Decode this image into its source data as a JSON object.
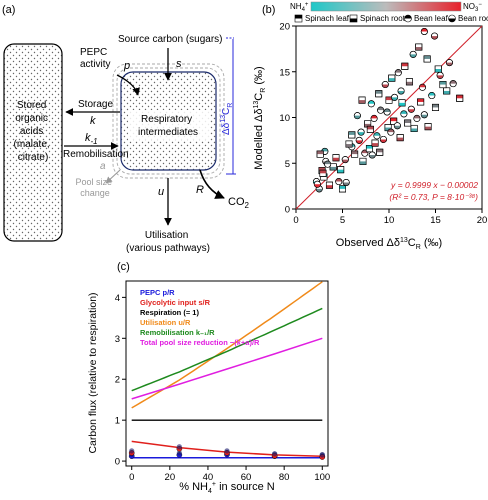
{
  "panel_a": {
    "label": "(a)",
    "stored_box": [
      "Stored",
      "organic",
      "acids",
      "(malate,",
      "citrate)"
    ],
    "resp_box": [
      "Respiratory",
      "intermediates"
    ],
    "source": "Source carbon (sugars)",
    "pepc": [
      "PEPC",
      "activity"
    ],
    "p": "p",
    "s": "s",
    "storage": "Storage",
    "k": "k",
    "k_minus": "k",
    "k_minus_sub": "-1",
    "remobilisation": "Remobilisation",
    "a": "a",
    "pool_change": [
      "Pool size",
      "change"
    ],
    "u": "u",
    "R": "R",
    "co2": "CO",
    "co2_sub": "2",
    "utilisation": [
      "Utilisation",
      "(various pathways)"
    ],
    "delta_label": "Δδ",
    "delta_sup": "13",
    "delta_c": "C",
    "delta_sub": "R"
  },
  "panel_b": {
    "label": "(b)",
    "gradient_left": "NH",
    "gradient_left_sup": "4",
    "gradient_left_plus": "+",
    "gradient_right": "NO",
    "gradient_right_sub": "3",
    "gradient_right_minus": "−",
    "legend": [
      "Spinach leaf",
      "Spinach root",
      "Bean leaf",
      "Bean root"
    ],
    "equation": "y = 0.9999 x − 0.00002",
    "stats": "(R² = 0.73, P = 8·10⁻³⁸)",
    "colors": {
      "low": "#1ec8c8",
      "high": "#e8202a",
      "line": "#d0202a"
    }
  },
  "panel_c": {
    "label": "(c)",
    "legend": [
      {
        "name": "PEPC  p/R",
        "color": "#1a1adb"
      },
      {
        "name": "Glycolytic input  s/R",
        "color": "#e0201c"
      },
      {
        "name": "Respiration  (= 1)",
        "color": "#000000"
      },
      {
        "name": "Utilisation  u/R",
        "color": "#f08a1a"
      },
      {
        "name": "Remobilisation  k₋₁/R",
        "color": "#1e8a1e"
      },
      {
        "name": "Total pool size reduction  −(k+a)/R",
        "color": "#e01ee0"
      }
    ]
  },
  "chart_data": [
    {
      "type": "scatter",
      "title": "",
      "xlabel": "Observed Δδ¹³C_R (‰)",
      "ylabel": "Modelled Δδ¹³C_R (‰)",
      "xlim": [
        0,
        20
      ],
      "ylim": [
        0,
        20
      ],
      "xticks": [
        "0",
        "5",
        "10",
        "15",
        "20"
      ],
      "yticks": [
        "0",
        "5",
        "10",
        "15",
        "20"
      ],
      "fit_line": {
        "slope": 0.9999,
        "intercept": -2e-05
      },
      "points": [
        [
          2.2,
          3.0,
          0
        ],
        [
          2.5,
          2.2,
          0
        ],
        [
          2.8,
          4.2,
          1
        ],
        [
          3.0,
          3.5,
          1
        ],
        [
          3.2,
          5.2,
          0
        ],
        [
          3.6,
          2.6,
          1
        ],
        [
          3.1,
          6.3,
          0
        ],
        [
          2.6,
          6.0,
          1
        ],
        [
          2.3,
          2.7,
          0
        ],
        [
          4.0,
          4.6,
          1
        ],
        [
          4.6,
          3.0,
          0
        ],
        [
          5.0,
          2.2,
          1
        ],
        [
          5.4,
          2.9,
          0
        ],
        [
          4.3,
          5.6,
          1
        ],
        [
          6.0,
          6.8,
          0
        ],
        [
          6.3,
          6.0,
          1
        ],
        [
          6.8,
          7.5,
          0
        ],
        [
          7.2,
          5.2,
          1
        ],
        [
          7.4,
          6.1,
          0
        ],
        [
          7.9,
          6.6,
          1
        ],
        [
          8.2,
          5.9,
          0
        ],
        [
          8.5,
          7.2,
          1
        ],
        [
          8.7,
          8.0,
          0
        ],
        [
          9.0,
          6.2,
          1
        ],
        [
          9.4,
          7.6,
          0
        ],
        [
          9.9,
          8.9,
          1
        ],
        [
          10.2,
          8.4,
          0
        ],
        [
          10.5,
          9.6,
          1
        ],
        [
          10.9,
          9.1,
          0
        ],
        [
          11.2,
          7.8,
          1
        ],
        [
          11.6,
          10.4,
          0
        ],
        [
          12.0,
          9.4,
          1
        ],
        [
          12.4,
          10.9,
          0
        ],
        [
          12.7,
          8.8,
          1
        ],
        [
          13.0,
          9.9,
          0
        ],
        [
          13.4,
          11.7,
          1
        ],
        [
          13.8,
          10.3,
          0
        ],
        [
          14.2,
          9.0,
          1
        ],
        [
          14.6,
          12.4,
          0
        ],
        [
          15.0,
          11.1,
          1
        ],
        [
          15.5,
          14.6,
          0
        ],
        [
          16.2,
          12.9,
          1
        ],
        [
          16.9,
          13.7,
          0
        ],
        [
          17.6,
          12.1,
          1
        ],
        [
          6.6,
          10.2,
          0
        ],
        [
          7.1,
          11.9,
          1
        ],
        [
          8.1,
          11.5,
          0
        ],
        [
          8.9,
          12.6,
          1
        ],
        [
          9.6,
          13.6,
          0
        ],
        [
          10.3,
          14.3,
          1
        ],
        [
          11.0,
          14.9,
          0
        ],
        [
          11.7,
          15.6,
          1
        ],
        [
          12.6,
          16.9,
          0
        ],
        [
          13.2,
          17.7,
          1
        ],
        [
          13.8,
          19.4,
          0
        ],
        [
          14.1,
          16.4,
          1
        ],
        [
          14.9,
          18.9,
          0
        ],
        [
          15.3,
          15.3,
          1
        ],
        [
          9.1,
          10.8,
          0
        ],
        [
          10.0,
          11.9,
          1
        ],
        [
          11.3,
          12.9,
          0
        ],
        [
          7.7,
          9.3,
          1
        ],
        [
          8.4,
          9.9,
          0
        ],
        [
          6.0,
          8.1,
          1
        ],
        [
          5.3,
          5.4,
          0
        ],
        [
          4.8,
          4.3,
          1
        ],
        [
          3.4,
          4.9,
          0
        ],
        [
          2.9,
          3.9,
          1
        ],
        [
          10.6,
          12.2,
          0
        ],
        [
          12.2,
          13.9,
          1
        ],
        [
          13.6,
          13.3,
          0
        ],
        [
          15.8,
          13.6,
          1
        ],
        [
          16.5,
          16.0,
          0
        ],
        [
          11.4,
          11.6,
          1
        ],
        [
          9.8,
          10.6,
          0
        ],
        [
          8.0,
          8.7,
          1
        ],
        [
          7.0,
          8.4,
          0
        ],
        [
          5.7,
          7.1,
          1
        ]
      ]
    },
    {
      "type": "line",
      "title": "",
      "xlabel": "% NH₄⁺ in source N",
      "ylabel": "Carbon flux (relative to respiration)",
      "xlim": [
        0,
        100
      ],
      "ylim": [
        0,
        4.4
      ],
      "xticks": [
        "0",
        "20",
        "40",
        "60",
        "80",
        "100"
      ],
      "yticks": [
        "0",
        "1",
        "2",
        "3",
        "4"
      ],
      "x": [
        0,
        25,
        50,
        75,
        100
      ],
      "series": [
        {
          "name": "PEPC  p/R",
          "values": [
            0.08,
            0.08,
            0.08,
            0.08,
            0.08
          ],
          "markers": [
            0.12,
            0.15,
            0.16,
            0.12,
            0.11
          ],
          "color": "#1a1adb"
        },
        {
          "name": "Glycolytic input  s/R",
          "values": [
            0.48,
            0.33,
            0.22,
            0.15,
            0.12
          ],
          "markers": [
            0.2,
            0.3,
            0.2,
            0.13,
            0.1
          ],
          "color": "#e0201c"
        },
        {
          "name": "Respiration  (= 1)",
          "values": [
            1,
            1,
            1,
            1,
            1
          ],
          "color": "#000000"
        },
        {
          "name": "Utilisation  u/R",
          "values": [
            1.3,
            1.98,
            2.75,
            3.55,
            4.38
          ],
          "color": "#f08a1a"
        },
        {
          "name": "Remobilisation  k₋₁/R",
          "values": [
            1.72,
            2.18,
            2.68,
            3.2,
            3.73
          ],
          "color": "#1e8a1e"
        },
        {
          "name": "Total pool size reduction  −(k+a)/R",
          "values": [
            1.52,
            1.88,
            2.25,
            2.62,
            3.0
          ],
          "color": "#e01ee0"
        }
      ]
    }
  ]
}
